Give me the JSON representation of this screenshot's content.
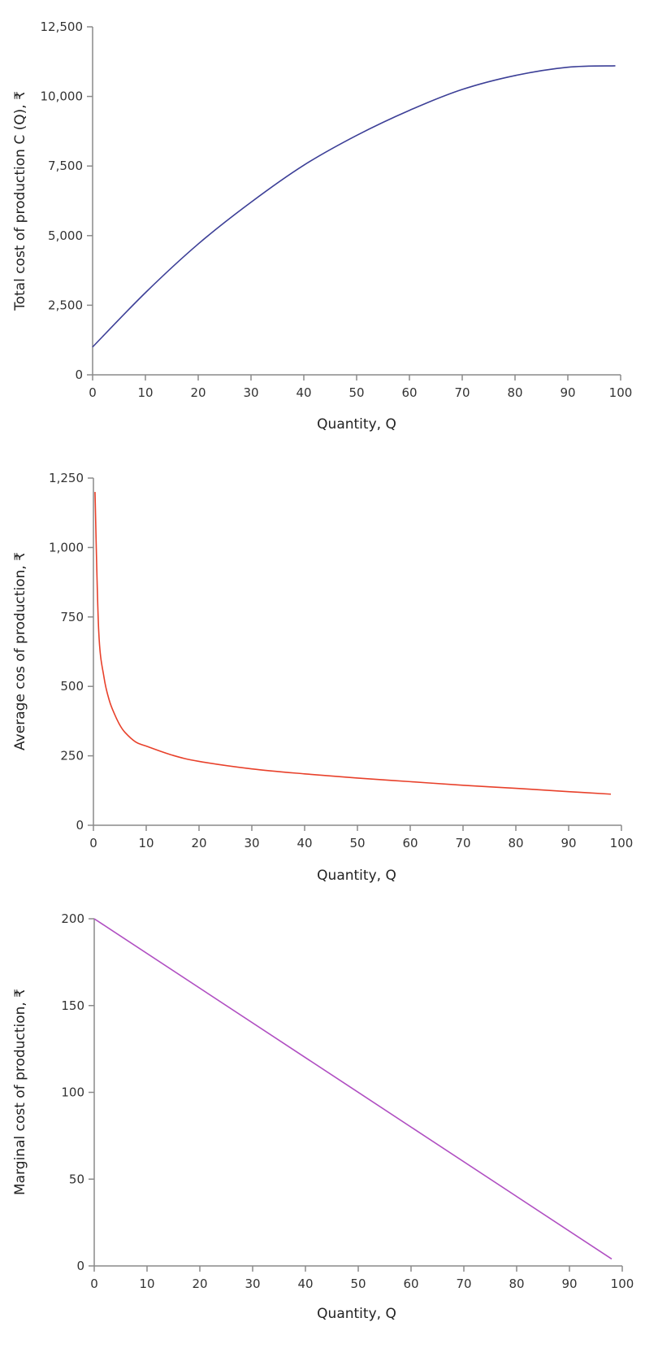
{
  "chart_data": [
    {
      "type": "line",
      "title": "",
      "xlabel": "Quantity, Q",
      "ylabel": "Total cost of production C (Q), ₹",
      "xlim": [
        0,
        100
      ],
      "ylim": [
        0,
        12500
      ],
      "xticks": [
        "0",
        "10",
        "20",
        "30",
        "40",
        "50",
        "60",
        "70",
        "80",
        "90",
        "100"
      ],
      "yticks": [
        "0",
        "2,500",
        "5,000",
        "7,500",
        "10,000",
        "12,500"
      ],
      "grid": false,
      "color": "#3c3f97",
      "x": [
        0,
        10,
        20,
        30,
        40,
        50,
        60,
        70,
        80,
        90,
        99
      ],
      "y": [
        1000,
        2950,
        4700,
        6200,
        7530,
        8600,
        9500,
        10250,
        10750,
        11050,
        11100
      ]
    },
    {
      "type": "line",
      "title": "",
      "xlabel": "Quantity, Q",
      "ylabel": "Average cos of production, ₹",
      "xlim": [
        0,
        100
      ],
      "ylim": [
        0,
        1250
      ],
      "xticks": [
        "0",
        "10",
        "20",
        "30",
        "40",
        "50",
        "60",
        "70",
        "80",
        "90",
        "100"
      ],
      "yticks": [
        "0",
        "250",
        "500",
        "750",
        "1,000",
        "1,250"
      ],
      "grid": false,
      "color": "#e8402a",
      "x": [
        0.3,
        1,
        2,
        3,
        4,
        5,
        6,
        8,
        10,
        15,
        20,
        30,
        40,
        50,
        60,
        70,
        80,
        90,
        98
      ],
      "y": [
        1200,
        700,
        533,
        450,
        400,
        361,
        334,
        300,
        285,
        252,
        230,
        203,
        185,
        170,
        157,
        144,
        133,
        121,
        112
      ]
    },
    {
      "type": "line",
      "title": "",
      "xlabel": "Quantity, Q",
      "ylabel": "Marginal cost of production, ₹",
      "xlim": [
        0,
        100
      ],
      "ylim": [
        0,
        200
      ],
      "xticks": [
        "0",
        "10",
        "20",
        "30",
        "40",
        "50",
        "60",
        "70",
        "80",
        "90",
        "100"
      ],
      "yticks": [
        "0",
        "50",
        "100",
        "150",
        "200"
      ],
      "grid": false,
      "color": "#b04fc2",
      "x": [
        0,
        98
      ],
      "y": [
        200,
        4
      ]
    }
  ]
}
